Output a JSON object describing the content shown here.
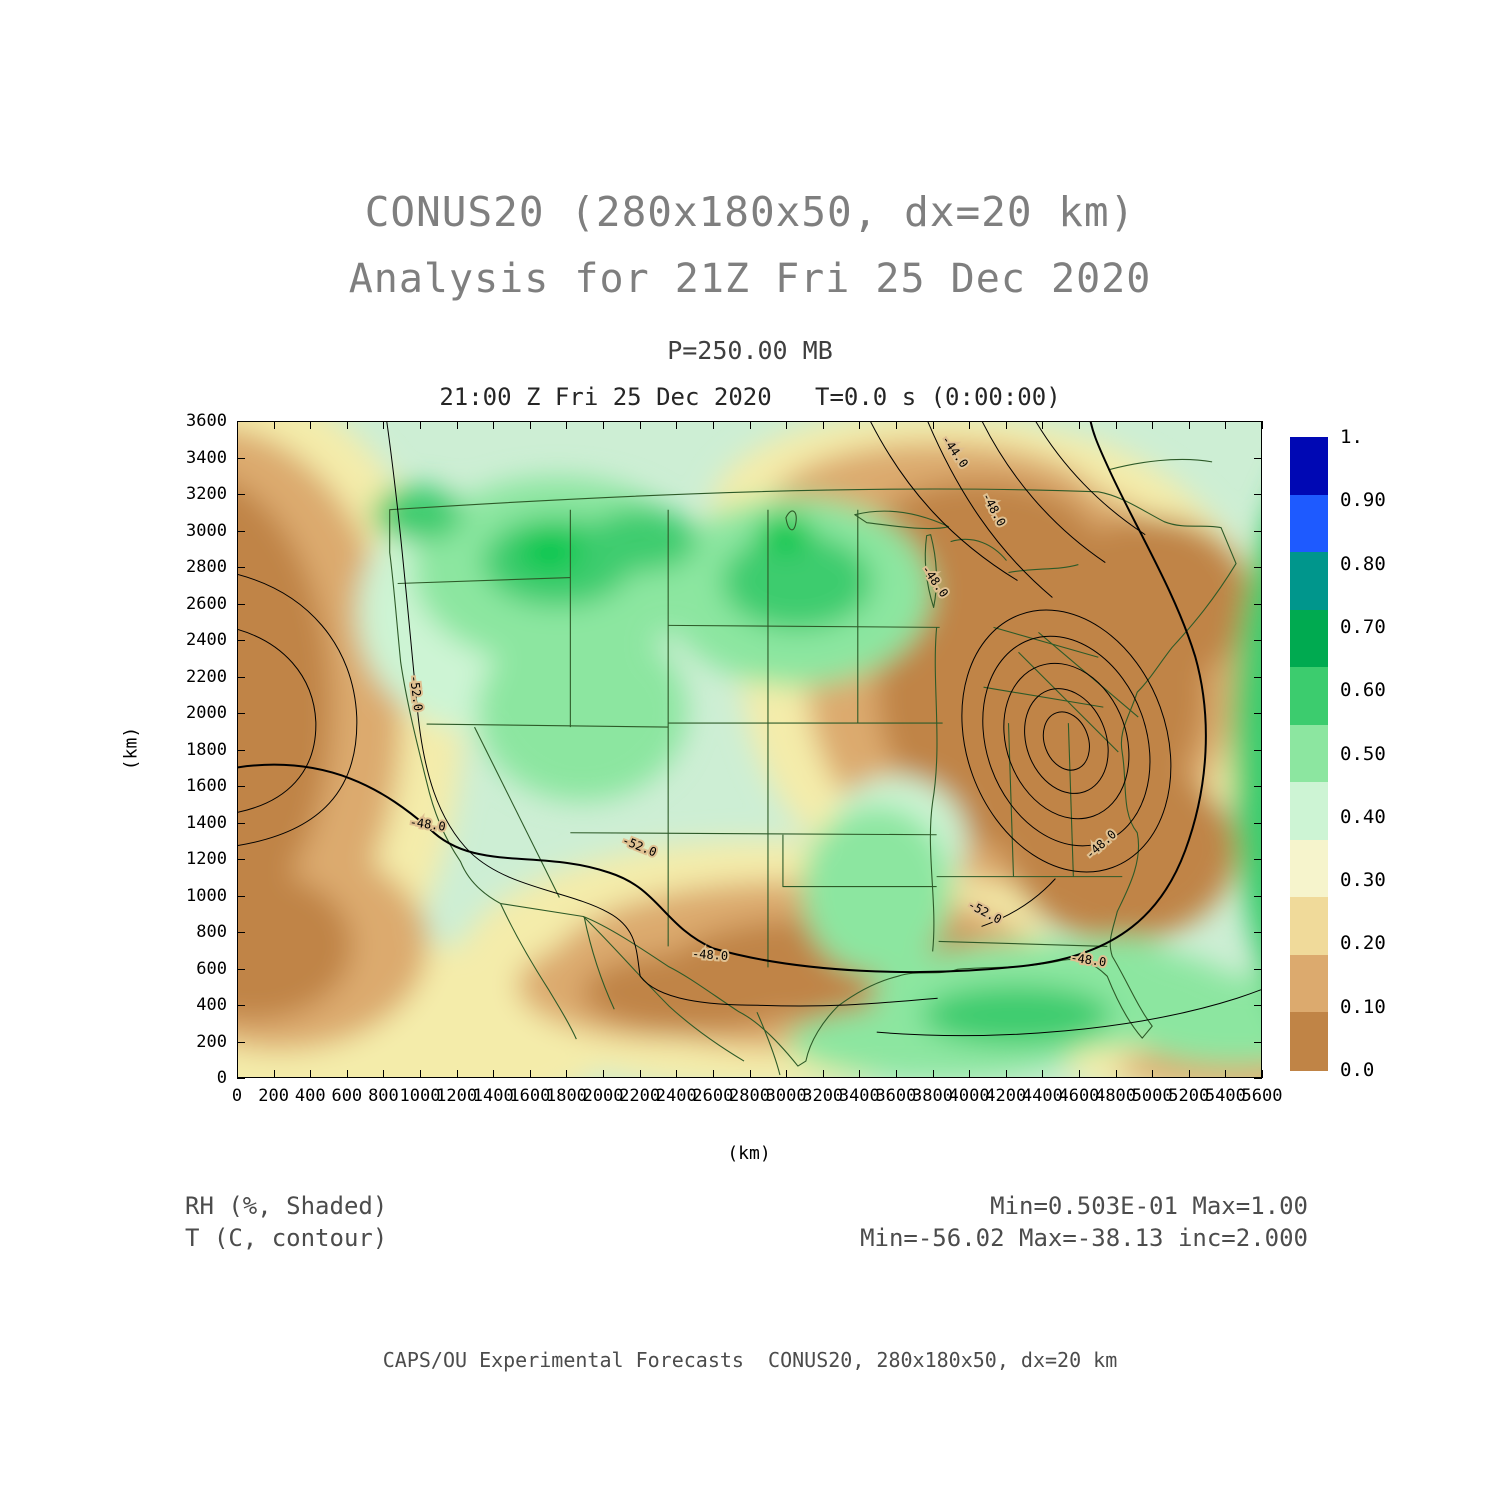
{
  "page": {
    "title1": "CONUS20 (280x180x50, dx=20 km)",
    "title2": "Analysis for 21Z Fri 25 Dec 2020",
    "pressure_line": "P=250.00 MB",
    "time_line": "21:00 Z Fri 25 Dec 2020   T=0.0 s (0:00:00)",
    "footer": "CAPS/OU Experimental Forecasts  CONUS20, 280x180x50, dx=20 km"
  },
  "annotations": {
    "field_shaded": "RH (%, Shaded)",
    "field_contour": "T (C, contour)",
    "shaded_minmax": "Min=0.503E-01 Max=1.00",
    "contour_minmax": "Min=-56.02 Max=-38.13 inc=2.000"
  },
  "chart_data": {
    "type": "heatmap",
    "title": "CONUS20 (280x180x50, dx=20 km)",
    "subtitle": "Analysis for 21Z Fri 25 Dec 2020",
    "pressure_level": "P=250.00 MB",
    "valid_time": "21:00 Z Fri 25 Dec 2020",
    "forecast_time": "T=0.0 s (0:00:00)",
    "xlabel": "(km)",
    "ylabel": "(km)",
    "xlim": [
      0,
      5600
    ],
    "ylim": [
      0,
      3600
    ],
    "grid": false,
    "xticks": [
      0,
      200,
      400,
      600,
      800,
      1000,
      1200,
      1400,
      1600,
      1800,
      2000,
      2200,
      2400,
      2600,
      2800,
      3000,
      3200,
      3400,
      3600,
      3800,
      4000,
      4200,
      4400,
      4600,
      4800,
      5000,
      5200,
      5400,
      5600
    ],
    "yticks": [
      0,
      200,
      400,
      600,
      800,
      1000,
      1200,
      1400,
      1600,
      1800,
      2000,
      2200,
      2400,
      2600,
      2800,
      3000,
      3200,
      3400,
      3600
    ],
    "shaded_field": {
      "name": "RH",
      "units": "%",
      "min": 0.0503,
      "max": 1.0
    },
    "contour_field": {
      "name": "T",
      "units": "C",
      "min": -56.02,
      "max": -38.13,
      "interval": 2.0
    },
    "contour_labels_placed": [
      "-44.0",
      "-48.0",
      "-48.0",
      "-52.0",
      "-48.0",
      "-52.0",
      "-48.0",
      "-52.0",
      "-48.0",
      "-48.0"
    ],
    "colorbar": {
      "position": "right",
      "labels": [
        "1.",
        "0.90",
        "0.80",
        "0.70",
        "0.60",
        "0.50",
        "0.40",
        "0.30",
        "0.20",
        "0.10",
        "0.0"
      ],
      "colors_top_to_bottom": [
        "#0008b4",
        "#1e5aff",
        "#00968c",
        "#00aa50",
        "#3ccc6e",
        "#8ce6a0",
        "#cdf4d4",
        "#f6f4cc",
        "#f0da9a",
        "#dcaa6e",
        "#c08446"
      ]
    }
  }
}
